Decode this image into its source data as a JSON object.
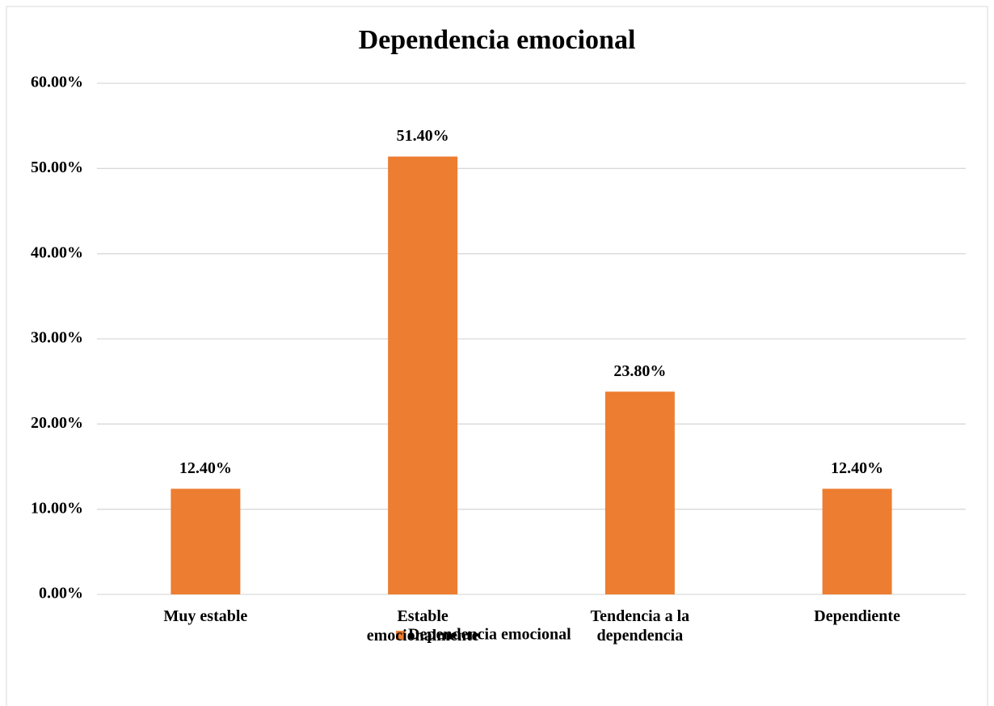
{
  "chart_data": {
    "type": "bar",
    "title": "Dependencia emocional",
    "categories": [
      "Muy estable",
      "Estable emocionalmente",
      "Tendencia a la dependencia",
      "Dependiente"
    ],
    "series": [
      {
        "name": "Dependencia emocional",
        "color": "#ed7d31",
        "values": [
          12.4,
          51.4,
          23.8,
          12.4
        ],
        "value_labels": [
          "12.40%",
          "51.40%",
          "23.80%",
          "12.40%"
        ]
      }
    ],
    "ylim": [
      0,
      60
    ],
    "yticks": [
      {
        "value": 0,
        "label": "0.00%"
      },
      {
        "value": 10,
        "label": "10.00%"
      },
      {
        "value": 20,
        "label": "20.00%"
      },
      {
        "value": 30,
        "label": "30.00%"
      },
      {
        "value": 40,
        "label": "40.00%"
      },
      {
        "value": 50,
        "label": "50.00%"
      },
      {
        "value": 60,
        "label": "60.00%"
      }
    ],
    "grid": true,
    "legend": "bottom"
  }
}
